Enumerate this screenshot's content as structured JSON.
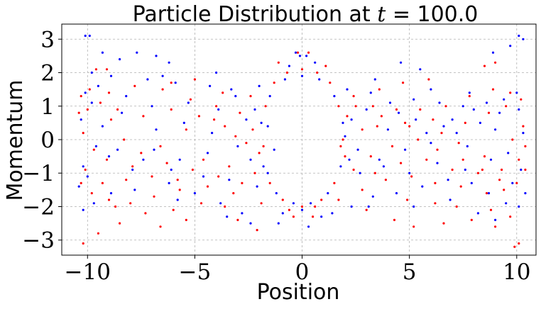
{
  "chart_data": {
    "type": "scatter",
    "title": "Particle Distribution at t = 100.0",
    "title_prefix": "Particle Distribution at ",
    "title_var": "t",
    "title_suffix": " = 100.0",
    "xlabel": "Position",
    "ylabel": "Momentum",
    "xlim": [
      -11.2,
      10.9
    ],
    "ylim": [
      -3.45,
      3.45
    ],
    "xticks": [
      -10,
      -5,
      0,
      5,
      10
    ],
    "xtick_labels": [
      "−10",
      "−5",
      "0",
      "5",
      "10"
    ],
    "yticks": [
      -3,
      -2,
      -1,
      0,
      1,
      2,
      3
    ],
    "ytick_labels": [
      "−3",
      "−2",
      "−1",
      "0",
      "1",
      "2",
      "3"
    ],
    "grid": true,
    "legend": "none",
    "colors": {
      "series_a": "#0000ff",
      "series_b": "#ff0000",
      "grid": "#b0b0b0"
    },
    "series": [
      {
        "color": "#0000ff",
        "values": [
          [
            -10.1,
            3.1
          ],
          [
            -9.9,
            3.1
          ],
          [
            -9.3,
            2.6
          ],
          [
            -7.7,
            2.6
          ],
          [
            -8.5,
            2.4
          ],
          [
            -6.2,
            2.3
          ],
          [
            -6.8,
            2.5
          ],
          [
            -0.3,
            2.6
          ],
          [
            -0.1,
            2.5
          ],
          [
            0.2,
            2.5
          ],
          [
            4.6,
            2.3
          ],
          [
            5.5,
            2.1
          ],
          [
            8.9,
            2.6
          ],
          [
            9.7,
            2.8
          ],
          [
            10.1,
            3.1
          ],
          [
            10.3,
            3.0
          ],
          [
            -9.8,
            2.0
          ],
          [
            -8.9,
            1.9
          ],
          [
            -7.2,
            1.8
          ],
          [
            -5.9,
            1.7
          ],
          [
            -4.3,
            1.6
          ],
          [
            -3.1,
            1.3
          ],
          [
            -2.2,
            0.9
          ],
          [
            -1.6,
            0.4
          ],
          [
            -1.3,
            -0.3
          ],
          [
            -1.6,
            -1.0
          ],
          [
            -2.1,
            -1.4
          ],
          [
            -3.4,
            -1.2
          ],
          [
            -4.6,
            -1.1
          ],
          [
            -6.1,
            -0.9
          ],
          [
            -7.4,
            -0.6
          ],
          [
            -8.6,
            -0.3
          ],
          [
            -9.3,
            0.4
          ],
          [
            -9.8,
            1.1
          ],
          [
            -10.1,
            1.4
          ],
          [
            -10.3,
            0.6
          ],
          [
            -10.2,
            -0.8
          ],
          [
            -10.4,
            -1.4
          ],
          [
            -10.2,
            -2.1
          ],
          [
            -9.7,
            -1.9
          ],
          [
            -8.9,
            -1.6
          ],
          [
            -7.8,
            -1.5
          ],
          [
            -6.2,
            -1.3
          ],
          [
            -5.0,
            -1.6
          ],
          [
            -3.8,
            -1.9
          ],
          [
            -2.8,
            -2.2
          ],
          [
            -1.1,
            -2.5
          ],
          [
            0.3,
            -2.6
          ],
          [
            1.4,
            -2.2
          ],
          [
            2.3,
            -2.0
          ],
          [
            3.3,
            -1.7
          ],
          [
            4.4,
            -1.6
          ],
          [
            5.6,
            -1.4
          ],
          [
            6.8,
            -1.2
          ],
          [
            7.9,
            -1.3
          ],
          [
            8.7,
            -1.6
          ],
          [
            9.5,
            -1.9
          ],
          [
            10.1,
            -2.0
          ],
          [
            10.4,
            -1.6
          ],
          [
            10.2,
            -0.9
          ],
          [
            10.3,
            0.2
          ],
          [
            10.1,
            0.9
          ],
          [
            9.4,
            1.2
          ],
          [
            8.6,
            1.1
          ],
          [
            7.5,
            1.0
          ],
          [
            6.4,
            1.1
          ],
          [
            5.2,
            1.2
          ],
          [
            4.1,
            1.1
          ],
          [
            3.0,
            0.9
          ],
          [
            2.3,
            0.6
          ],
          [
            2.0,
            0.1
          ],
          [
            2.2,
            -0.6
          ],
          [
            2.7,
            -1.0
          ],
          [
            3.6,
            -0.6
          ],
          [
            4.8,
            -0.3
          ],
          [
            6.0,
            -0.1
          ],
          [
            7.2,
            0.2
          ],
          [
            8.3,
            0.5
          ],
          [
            9.2,
            0.8
          ],
          [
            -6.8,
            0.3
          ],
          [
            -5.5,
            0.5
          ],
          [
            -4.2,
            0.2
          ],
          [
            -3.0,
            -0.2
          ],
          [
            -2.4,
            -0.6
          ],
          [
            -7.9,
            -0.9
          ],
          [
            -9.0,
            -0.5
          ],
          [
            4.0,
            0.3
          ],
          [
            5.3,
            0.6
          ],
          [
            6.6,
            0.4
          ],
          [
            7.7,
            -0.2
          ],
          [
            8.8,
            -0.6
          ],
          [
            0.0,
            1.9
          ],
          [
            -0.8,
            1.8
          ],
          [
            0.8,
            1.8
          ],
          [
            -1.5,
            1.3
          ],
          [
            1.5,
            1.3
          ],
          [
            -1.9,
            0.5
          ],
          [
            1.9,
            0.5
          ],
          [
            -1.8,
            -0.8
          ],
          [
            1.8,
            -0.8
          ],
          [
            -1.2,
            -1.6
          ],
          [
            1.2,
            -1.6
          ],
          [
            -0.4,
            -1.9
          ],
          [
            0.4,
            -1.9
          ],
          [
            -5.8,
            -1.8
          ],
          [
            -3.5,
            -2.3
          ],
          [
            -2.4,
            -2.5
          ],
          [
            3.1,
            -2.0
          ],
          [
            5.2,
            -2.0
          ],
          [
            6.9,
            -1.8
          ],
          [
            8.2,
            -2.2
          ],
          [
            9.0,
            -2.4
          ],
          [
            -6.5,
            1.9
          ],
          [
            -4.0,
            2.0
          ],
          [
            3.4,
            1.8
          ],
          [
            6.0,
            1.5
          ],
          [
            7.8,
            1.4
          ],
          [
            -8.2,
            1.3
          ],
          [
            -7.0,
            1.0
          ],
          [
            -5.3,
            1.1
          ],
          [
            -3.9,
            0.9
          ],
          [
            -2.6,
            0.6
          ],
          [
            2.6,
            -0.3
          ],
          [
            3.8,
            -0.8
          ],
          [
            5.0,
            -1.0
          ],
          [
            6.3,
            -0.7
          ],
          [
            7.6,
            -0.9
          ],
          [
            9.6,
            -0.4
          ],
          [
            -9.6,
            -0.2
          ],
          [
            -8.4,
            0.8
          ],
          [
            -6.9,
            -0.3
          ],
          [
            -5.7,
            -0.6
          ],
          [
            -4.4,
            -0.4
          ],
          [
            4.5,
            0.8
          ],
          [
            5.8,
            0.2
          ],
          [
            7.0,
            0.6
          ],
          [
            8.0,
            0.9
          ],
          [
            9.0,
            0.3
          ],
          [
            -3.3,
            1.5
          ],
          [
            -2.0,
            1.6
          ],
          [
            2.1,
            1.5
          ],
          [
            3.2,
            1.4
          ],
          [
            -10.0,
            -1.1
          ],
          [
            -9.5,
            1.6
          ],
          [
            10.0,
            1.4
          ],
          [
            9.8,
            -1.3
          ],
          [
            0.9,
            -2.3
          ],
          [
            -0.9,
            -2.2
          ],
          [
            0.0,
            -2.1
          ],
          [
            0.6,
            2.3
          ],
          [
            -0.6,
            2.2
          ]
        ]
      },
      {
        "color": "#ff0000",
        "values": [
          [
            -10.2,
            -3.1
          ],
          [
            -9.5,
            -2.8
          ],
          [
            -8.5,
            -2.5
          ],
          [
            -6.6,
            -2.6
          ],
          [
            -5.4,
            -2.4
          ],
          [
            -3.0,
            -2.4
          ],
          [
            -2.1,
            -2.7
          ],
          [
            4.3,
            -2.4
          ],
          [
            5.2,
            -2.6
          ],
          [
            6.6,
            -2.5
          ],
          [
            7.9,
            -2.4
          ],
          [
            9.9,
            -3.2
          ],
          [
            10.1,
            -3.1
          ],
          [
            -0.2,
            2.6
          ],
          [
            0.3,
            2.6
          ],
          [
            -9.6,
            2.1
          ],
          [
            -9.1,
            2.1
          ],
          [
            8.5,
            2.2
          ],
          [
            9.0,
            2.3
          ],
          [
            -10.3,
            1.3
          ],
          [
            -9.9,
            1.5
          ],
          [
            -9.0,
            1.4
          ],
          [
            -7.8,
            1.6
          ],
          [
            -6.5,
            1.5
          ],
          [
            -5.2,
            1.2
          ],
          [
            -4.0,
            1.0
          ],
          [
            -2.9,
            0.8
          ],
          [
            -2.3,
            0.3
          ],
          [
            -2.0,
            -0.4
          ],
          [
            -2.2,
            -1.0
          ],
          [
            -2.8,
            -1.3
          ],
          [
            -3.9,
            -1.1
          ],
          [
            -5.1,
            -0.9
          ],
          [
            -6.3,
            -0.7
          ],
          [
            -7.5,
            -0.4
          ],
          [
            -8.3,
            0.0
          ],
          [
            -8.9,
            0.6
          ],
          [
            -9.4,
            1.1
          ],
          [
            -10.1,
            -0.9
          ],
          [
            -10.3,
            -1.3
          ],
          [
            -9.8,
            -1.6
          ],
          [
            -9.0,
            -1.8
          ],
          [
            -8.0,
            -1.9
          ],
          [
            -6.9,
            -1.7
          ],
          [
            -5.7,
            -1.5
          ],
          [
            -4.4,
            -1.4
          ],
          [
            -3.2,
            -1.6
          ],
          [
            -1.9,
            -1.9
          ],
          [
            -0.6,
            -2.1
          ],
          [
            0.6,
            -2.0
          ],
          [
            1.7,
            -1.8
          ],
          [
            2.8,
            -1.5
          ],
          [
            3.9,
            -1.2
          ],
          [
            5.1,
            -1.1
          ],
          [
            6.2,
            -1.3
          ],
          [
            7.4,
            -1.4
          ],
          [
            8.6,
            -1.6
          ],
          [
            9.4,
            -1.5
          ],
          [
            10.0,
            -1.3
          ],
          [
            10.4,
            -0.9
          ],
          [
            10.3,
            0.4
          ],
          [
            10.2,
            1.2
          ],
          [
            9.7,
            1.4
          ],
          [
            8.9,
            1.5
          ],
          [
            7.8,
            1.3
          ],
          [
            6.7,
            1.0
          ],
          [
            5.5,
            0.9
          ],
          [
            4.4,
            0.9
          ],
          [
            3.3,
            1.0
          ],
          [
            2.5,
            1.0
          ],
          [
            2.1,
            0.7
          ],
          [
            1.9,
            0.0
          ],
          [
            2.0,
            -0.5
          ],
          [
            2.4,
            -0.9
          ],
          [
            3.2,
            -0.5
          ],
          [
            4.2,
            -0.2
          ],
          [
            5.4,
            0.0
          ],
          [
            6.5,
            0.2
          ],
          [
            7.6,
            0.5
          ],
          [
            8.7,
            0.8
          ],
          [
            9.5,
            1.0
          ],
          [
            -9.1,
            -0.6
          ],
          [
            -7.9,
            -0.8
          ],
          [
            -6.6,
            -0.2
          ],
          [
            -5.4,
            0.3
          ],
          [
            -4.1,
            0.6
          ],
          [
            -3.1,
            0.1
          ],
          [
            3.5,
            0.4
          ],
          [
            4.8,
            0.5
          ],
          [
            6.1,
            0.6
          ],
          [
            7.3,
            -0.1
          ],
          [
            8.5,
            -0.5
          ],
          [
            9.3,
            -0.9
          ],
          [
            0.0,
            2.1
          ],
          [
            -0.7,
            2.0
          ],
          [
            0.7,
            2.0
          ],
          [
            -1.3,
            1.7
          ],
          [
            1.3,
            1.7
          ],
          [
            -1.7,
            1.0
          ],
          [
            1.7,
            1.0
          ],
          [
            -1.8,
            -0.2
          ],
          [
            1.8,
            -0.2
          ],
          [
            -1.5,
            -1.3
          ],
          [
            1.5,
            -1.3
          ],
          [
            -0.9,
            -1.8
          ],
          [
            0.9,
            -1.8
          ],
          [
            0.0,
            -2.0
          ],
          [
            -6.0,
            -2.1
          ],
          [
            -4.7,
            -1.9
          ],
          [
            -3.6,
            -2.0
          ],
          [
            -7.3,
            -2.2
          ],
          [
            -8.7,
            -2.0
          ],
          [
            3.0,
            -2.1
          ],
          [
            4.9,
            -1.8
          ],
          [
            6.2,
            -1.9
          ],
          [
            7.2,
            -2.0
          ],
          [
            8.8,
            -2.1
          ],
          [
            9.7,
            -2.3
          ],
          [
            -10.2,
            0.2
          ],
          [
            -10.4,
            0.8
          ],
          [
            -9.7,
            -0.3
          ],
          [
            -8.6,
            0.9
          ],
          [
            -7.4,
            0.7
          ],
          [
            -6.1,
            0.9
          ],
          [
            -4.8,
            0.7
          ],
          [
            -3.6,
            0.4
          ],
          [
            -2.6,
            -0.1
          ],
          [
            2.8,
            0.3
          ],
          [
            3.7,
            0.7
          ],
          [
            5.0,
            0.4
          ],
          [
            6.3,
            -0.3
          ],
          [
            7.5,
            -0.6
          ],
          [
            8.4,
            -0.9
          ],
          [
            9.8,
            0.0
          ],
          [
            10.4,
            -0.2
          ],
          [
            -8.2,
            -1.2
          ],
          [
            -7.0,
            -1.1
          ],
          [
            -5.8,
            -1.2
          ],
          [
            -4.6,
            -0.6
          ],
          [
            -3.4,
            -0.8
          ],
          [
            3.4,
            -1.0
          ],
          [
            4.6,
            -0.7
          ],
          [
            5.8,
            -0.6
          ],
          [
            7.0,
            -0.9
          ],
          [
            8.2,
            -1.0
          ],
          [
            9.2,
            -1.2
          ],
          [
            -9.3,
            -1.3
          ],
          [
            -2.4,
            1.3
          ],
          [
            -3.7,
            1.4
          ],
          [
            2.4,
            1.3
          ],
          [
            3.6,
            1.5
          ],
          [
            4.7,
            1.7
          ],
          [
            5.9,
            1.8
          ],
          [
            -5.0,
            1.8
          ],
          [
            -6.1,
            1.7
          ],
          [
            9.0,
            -2.6
          ],
          [
            -1.1,
            2.3
          ],
          [
            1.1,
            2.2
          ],
          [
            -0.4,
            -2.3
          ],
          [
            0.5,
            -2.3
          ],
          [
            10.1,
            -0.6
          ],
          [
            -10.0,
            0.9
          ]
        ]
      }
    ]
  }
}
